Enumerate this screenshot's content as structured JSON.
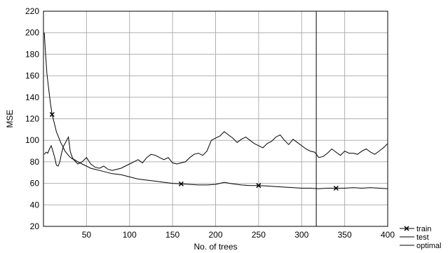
{
  "chart_data": {
    "type": "line",
    "title": "",
    "xlabel": "No. of trees",
    "ylabel": "MSE",
    "xlim": [
      0,
      400
    ],
    "ylim": [
      20,
      220
    ],
    "x_ticks": [
      50,
      100,
      150,
      200,
      250,
      300,
      350,
      400
    ],
    "y_ticks": [
      20,
      40,
      60,
      80,
      100,
      120,
      140,
      160,
      180,
      200,
      220
    ],
    "grid": true,
    "legend_position": "bottom-right-outside",
    "series": [
      {
        "name": "train",
        "marker": "x",
        "x": [
          1,
          2,
          4,
          6,
          8,
          10,
          12,
          15,
          18,
          20,
          22,
          25,
          28,
          30,
          33,
          36,
          40,
          45,
          50,
          55,
          60,
          65,
          70,
          75,
          80,
          90,
          100,
          110,
          120,
          130,
          140,
          150,
          160,
          170,
          180,
          190,
          200,
          210,
          220,
          230,
          240,
          250,
          260,
          270,
          280,
          290,
          300,
          310,
          320,
          330,
          340,
          350,
          360,
          370,
          380,
          390,
          400
        ],
        "y": [
          200,
          185,
          162,
          148,
          135,
          124,
          118,
          108,
          102,
          98,
          95,
          90,
          87,
          85,
          83,
          82,
          80,
          78,
          76,
          74,
          73,
          72,
          71,
          70,
          69,
          68,
          66,
          64,
          63,
          62,
          61,
          60,
          59.5,
          59,
          58.5,
          58.5,
          59,
          61,
          59.5,
          58.5,
          58,
          58,
          57.5,
          57,
          56.5,
          56,
          55.5,
          55.5,
          55,
          55.5,
          55.5,
          55.5,
          56,
          55.5,
          56,
          55.5,
          55
        ]
      },
      {
        "name": "test",
        "marker": "none",
        "x": [
          1,
          3,
          5,
          7,
          9,
          11,
          13,
          15,
          17,
          19,
          21,
          23,
          25,
          27,
          29,
          31,
          33,
          35,
          40,
          45,
          50,
          55,
          60,
          65,
          70,
          75,
          80,
          85,
          90,
          95,
          100,
          105,
          110,
          115,
          120,
          125,
          130,
          135,
          140,
          145,
          150,
          155,
          160,
          165,
          170,
          175,
          180,
          185,
          190,
          195,
          200,
          205,
          210,
          215,
          220,
          225,
          230,
          235,
          240,
          245,
          250,
          255,
          260,
          265,
          270,
          275,
          280,
          285,
          290,
          295,
          300,
          305,
          310,
          315,
          320,
          325,
          330,
          335,
          340,
          345,
          350,
          355,
          360,
          365,
          370,
          375,
          380,
          385,
          390,
          395,
          400
        ],
        "y": [
          87,
          89,
          88,
          92,
          95,
          90,
          84,
          77,
          76,
          80,
          88,
          94,
          97,
          100,
          103,
          90,
          85,
          82,
          78,
          80,
          84,
          78,
          75,
          74,
          76,
          73,
          72,
          73,
          74,
          76,
          78,
          80,
          82,
          79,
          84,
          87,
          86,
          84,
          82,
          84,
          79,
          78,
          79,
          80,
          84,
          87,
          88,
          86,
          90,
          100,
          102,
          104,
          108,
          105,
          102,
          98,
          101,
          103,
          100,
          97,
          95,
          93,
          97,
          99,
          103,
          105,
          100,
          96,
          101,
          98,
          95,
          92,
          90,
          89,
          84,
          85,
          88,
          92,
          89,
          86,
          90,
          88,
          88,
          87,
          90,
          92,
          89,
          87,
          90,
          93,
          97
        ]
      },
      {
        "name": "optimal",
        "marker": "none",
        "vertical_x": 317
      }
    ]
  }
}
